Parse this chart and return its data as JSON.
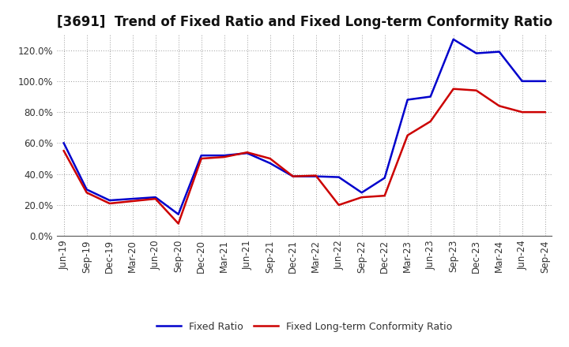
{
  "title": "[3691]  Trend of Fixed Ratio and Fixed Long-term Conformity Ratio",
  "labels": [
    "Jun-19",
    "Sep-19",
    "Dec-19",
    "Mar-20",
    "Jun-20",
    "Sep-20",
    "Dec-20",
    "Mar-21",
    "Jun-21",
    "Sep-21",
    "Dec-21",
    "Mar-22",
    "Jun-22",
    "Sep-22",
    "Dec-22",
    "Mar-23",
    "Jun-23",
    "Sep-23",
    "Dec-23",
    "Mar-24",
    "Jun-24",
    "Sep-24"
  ],
  "fixed_ratio": [
    60.0,
    30.0,
    23.0,
    24.0,
    25.0,
    14.0,
    52.0,
    52.0,
    53.5,
    47.0,
    38.5,
    38.5,
    38.0,
    28.0,
    37.5,
    88.0,
    90.0,
    127.0,
    118.0,
    119.0,
    100.0,
    100.0
  ],
  "fixed_lt_ratio": [
    55.0,
    28.0,
    21.0,
    22.5,
    24.0,
    8.0,
    50.0,
    51.0,
    54.0,
    50.0,
    38.5,
    39.0,
    20.0,
    25.0,
    26.0,
    65.0,
    74.0,
    95.0,
    94.0,
    84.0,
    80.0,
    80.0
  ],
  "fixed_ratio_color": "#0000cc",
  "fixed_lt_ratio_color": "#cc0000",
  "background_color": "#ffffff",
  "grid_color": "#999999",
  "ylim": [
    0,
    130
  ],
  "yticks": [
    0,
    20,
    40,
    60,
    80,
    100,
    120
  ],
  "title_fontsize": 12,
  "tick_fontsize": 8.5,
  "legend_fontsize": 9
}
